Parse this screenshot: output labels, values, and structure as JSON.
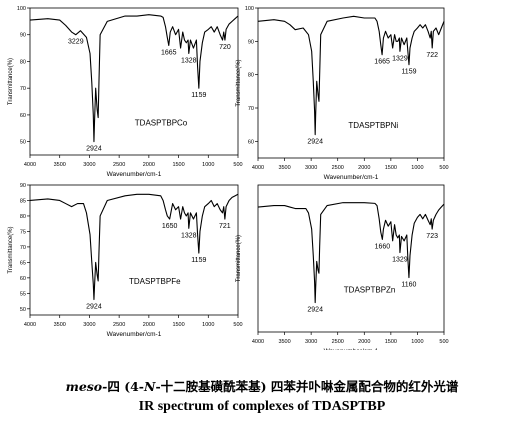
{
  "caption": {
    "cn_prefix": "meso-",
    "cn_mid": "四 (4-",
    "cn_italic_n": "N",
    "cn_rest": "-十二胺基磺酰苯基) 四苯并卟啉金属配合物的红外光谱",
    "en": "IR spectrum of complexes of TDASPTBP"
  },
  "chart_data": [
    {
      "type": "line",
      "title": "TDASPTBPCo",
      "xlabel": "Wavenumber/cm-1",
      "ylabel": "Transmittance(%)",
      "xlim": [
        4000,
        500
      ],
      "ylim": [
        45,
        100
      ],
      "xticks": [
        4000,
        3500,
        3000,
        2500,
        2000,
        1500,
        1000,
        500
      ],
      "yticks": [
        50,
        60,
        70,
        80,
        90,
        100
      ],
      "peak_labels": [
        {
          "x": 3229,
          "y": 90.0,
          "label": "3229"
        },
        {
          "x": 2924,
          "y": 50.0,
          "label": "2924"
        },
        {
          "x": 1665,
          "y": 86.0,
          "label": "1665"
        },
        {
          "x": 1328,
          "y": 83.0,
          "label": "1328"
        },
        {
          "x": 1159,
          "y": 70.0,
          "label": "1159"
        },
        {
          "x": 720,
          "y": 88.0,
          "label": "720"
        }
      ],
      "series": [
        {
          "points": [
            [
              4000,
              95.5
            ],
            [
              3700,
              96
            ],
            [
              3500,
              95.5
            ],
            [
              3400,
              93.5
            ],
            [
              3300,
              91
            ],
            [
              3229,
              90
            ],
            [
              3150,
              91.5
            ],
            [
              3050,
              89
            ],
            [
              2990,
              83
            ],
            [
              2960,
              72
            ],
            [
              2935,
              60
            ],
            [
              2924,
              50
            ],
            [
              2915,
              57
            ],
            [
              2895,
              70
            ],
            [
              2870,
              62
            ],
            [
              2853,
              59
            ],
            [
              2840,
              72
            ],
            [
              2820,
              90
            ],
            [
              2700,
              95
            ],
            [
              2400,
              97
            ],
            [
              2200,
              97
            ],
            [
              2000,
              97.5
            ],
            [
              1800,
              97
            ],
            [
              1760,
              96.5
            ],
            [
              1720,
              93
            ],
            [
              1690,
              89
            ],
            [
              1665,
              86
            ],
            [
              1640,
              91
            ],
            [
              1600,
              93
            ],
            [
              1550,
              90
            ],
            [
              1500,
              92
            ],
            [
              1466,
              85
            ],
            [
              1430,
              91
            ],
            [
              1400,
              88
            ],
            [
              1370,
              87
            ],
            [
              1340,
              88
            ],
            [
              1328,
              83
            ],
            [
              1300,
              88
            ],
            [
              1250,
              85
            ],
            [
              1200,
              88
            ],
            [
              1180,
              78
            ],
            [
              1159,
              70
            ],
            [
              1140,
              80
            ],
            [
              1100,
              87
            ],
            [
              1060,
              91
            ],
            [
              1000,
              92
            ],
            [
              950,
              93
            ],
            [
              900,
              91
            ],
            [
              850,
              93
            ],
            [
              800,
              90
            ],
            [
              760,
              88
            ],
            [
              740,
              91
            ],
            [
              720,
              88
            ],
            [
              700,
              92
            ],
            [
              650,
              94
            ],
            [
              600,
              95
            ],
            [
              550,
              96
            ],
            [
              500,
              97
            ]
          ]
        }
      ]
    },
    {
      "type": "line",
      "title": "TDASPTBPNi",
      "xlabel": "Wavenumber/cm-1",
      "ylabel": "Transmittance(%)",
      "xlim": [
        4000,
        500
      ],
      "ylim": [
        55,
        100
      ],
      "xticks": [
        4000,
        3500,
        3000,
        2500,
        2000,
        1500,
        1000,
        500
      ],
      "yticks": [
        60,
        70,
        80,
        90,
        100
      ],
      "peak_labels": [
        {
          "x": 2924,
          "y": 62.0,
          "label": "2924"
        },
        {
          "x": 1665,
          "y": 86.0,
          "label": "1665"
        },
        {
          "x": 1329,
          "y": 87.0,
          "label": "1329"
        },
        {
          "x": 1159,
          "y": 83.0,
          "label": "1159"
        },
        {
          "x": 722,
          "y": 88.0,
          "label": "722"
        }
      ],
      "series": [
        {
          "points": [
            [
              4000,
              96
            ],
            [
              3700,
              96.5
            ],
            [
              3500,
              96
            ],
            [
              3400,
              95
            ],
            [
              3300,
              93.5
            ],
            [
              3150,
              94
            ],
            [
              3050,
              92
            ],
            [
              2990,
              87
            ],
            [
              2960,
              78
            ],
            [
              2935,
              69
            ],
            [
              2924,
              62
            ],
            [
              2915,
              68
            ],
            [
              2895,
              78
            ],
            [
              2870,
              74
            ],
            [
              2853,
              72
            ],
            [
              2840,
              80
            ],
            [
              2820,
              92
            ],
            [
              2700,
              96
            ],
            [
              2400,
              97
            ],
            [
              2200,
              97.5
            ],
            [
              2000,
              97
            ],
            [
              1800,
              97
            ],
            [
              1760,
              96
            ],
            [
              1720,
              93
            ],
            [
              1690,
              89
            ],
            [
              1665,
              86
            ],
            [
              1640,
              91
            ],
            [
              1600,
              93
            ],
            [
              1550,
              91
            ],
            [
              1500,
              92
            ],
            [
              1466,
              88
            ],
            [
              1430,
              92
            ],
            [
              1400,
              90
            ],
            [
              1370,
              90
            ],
            [
              1340,
              91
            ],
            [
              1329,
              87
            ],
            [
              1300,
              91
            ],
            [
              1250,
              89
            ],
            [
              1200,
              91
            ],
            [
              1180,
              87
            ],
            [
              1159,
              83
            ],
            [
              1140,
              88
            ],
            [
              1100,
              91
            ],
            [
              1060,
              93
            ],
            [
              1000,
              94
            ],
            [
              950,
              95
            ],
            [
              900,
              94
            ],
            [
              850,
              95
            ],
            [
              800,
              93
            ],
            [
              760,
              91
            ],
            [
              740,
              93
            ],
            [
              722,
              88
            ],
            [
              700,
              93
            ],
            [
              650,
              94
            ],
            [
              600,
              92
            ],
            [
              550,
              94
            ],
            [
              500,
              96
            ]
          ]
        }
      ]
    },
    {
      "type": "line",
      "title": "TDASPTBPFe",
      "xlabel": "Wavenumber/cm-1",
      "ylabel": "Transmittance(%)",
      "xlim": [
        4000,
        500
      ],
      "ylim": [
        48,
        90
      ],
      "xticks": [
        4000,
        3500,
        3000,
        2500,
        2000,
        1500,
        1000,
        500
      ],
      "yticks": [
        50,
        55,
        60,
        65,
        70,
        75,
        80,
        85,
        90
      ],
      "peak_labels": [
        {
          "x": 2924,
          "y": 53.0,
          "label": "2924"
        },
        {
          "x": 1650,
          "y": 79.0,
          "label": "1650"
        },
        {
          "x": 1328,
          "y": 76.0,
          "label": "1328"
        },
        {
          "x": 1159,
          "y": 68.0,
          "label": "1159"
        },
        {
          "x": 721,
          "y": 79.0,
          "label": "721"
        }
      ],
      "series": [
        {
          "points": [
            [
              4000,
              85
            ],
            [
              3700,
              85.5
            ],
            [
              3500,
              85
            ],
            [
              3400,
              84
            ],
            [
              3300,
              83
            ],
            [
              3200,
              84
            ],
            [
              3100,
              84
            ],
            [
              3050,
              81
            ],
            [
              2990,
              74
            ],
            [
              2960,
              65
            ],
            [
              2935,
              58
            ],
            [
              2924,
              53
            ],
            [
              2915,
              57
            ],
            [
              2895,
              65
            ],
            [
              2870,
              61
            ],
            [
              2853,
              59
            ],
            [
              2840,
              68
            ],
            [
              2820,
              80
            ],
            [
              2700,
              85
            ],
            [
              2400,
              86.5
            ],
            [
              2200,
              87
            ],
            [
              2000,
              87
            ],
            [
              1800,
              86.5
            ],
            [
              1760,
              85
            ],
            [
              1720,
              82
            ],
            [
              1690,
              80
            ],
            [
              1650,
              79
            ],
            [
              1620,
              82
            ],
            [
              1600,
              84
            ],
            [
              1550,
              82
            ],
            [
              1500,
              83
            ],
            [
              1466,
              79
            ],
            [
              1430,
              83
            ],
            [
              1400,
              81
            ],
            [
              1370,
              80
            ],
            [
              1340,
              81
            ],
            [
              1328,
              76
            ],
            [
              1300,
              81
            ],
            [
              1250,
              79
            ],
            [
              1200,
              81
            ],
            [
              1180,
              74
            ],
            [
              1159,
              68
            ],
            [
              1140,
              75
            ],
            [
              1100,
              80
            ],
            [
              1060,
              83
            ],
            [
              1000,
              84
            ],
            [
              950,
              85
            ],
            [
              900,
              83
            ],
            [
              850,
              84
            ],
            [
              800,
              82
            ],
            [
              760,
              81
            ],
            [
              740,
              83
            ],
            [
              721,
              79
            ],
            [
              700,
              83
            ],
            [
              650,
              85
            ],
            [
              600,
              86
            ],
            [
              550,
              86.5
            ],
            [
              500,
              87
            ]
          ]
        }
      ]
    },
    {
      "type": "line",
      "title": "TDASPTBPZn",
      "xlabel": "Wavenumber/cm-1",
      "ylabel": "Transmittance(%)",
      "xlim": [
        4000,
        500
      ],
      "ylim": [
        0,
        100
      ],
      "xticks": [
        4000,
        3500,
        3000,
        2500,
        2000,
        1500,
        1000,
        500
      ],
      "yticks": [],
      "peak_labels": [
        {
          "x": 2924,
          "y": 20.0,
          "label": "2924"
        },
        {
          "x": 1660,
          "y": 63.0,
          "label": "1660"
        },
        {
          "x": 1329,
          "y": 54.0,
          "label": "1329"
        },
        {
          "x": 1160,
          "y": 37.0,
          "label": "1160"
        },
        {
          "x": 723,
          "y": 70.0,
          "label": "723"
        }
      ],
      "series": [
        {
          "points": [
            [
              4000,
              85
            ],
            [
              3700,
              86
            ],
            [
              3500,
              86
            ],
            [
              3400,
              85
            ],
            [
              3300,
              84
            ],
            [
              3200,
              84
            ],
            [
              3100,
              84
            ],
            [
              3050,
              81
            ],
            [
              2990,
              70
            ],
            [
              2960,
              52
            ],
            [
              2935,
              34
            ],
            [
              2924,
              20
            ],
            [
              2915,
              30
            ],
            [
              2895,
              48
            ],
            [
              2870,
              42
            ],
            [
              2853,
              40
            ],
            [
              2840,
              58
            ],
            [
              2820,
              80
            ],
            [
              2700,
              86
            ],
            [
              2400,
              88
            ],
            [
              2200,
              88
            ],
            [
              2000,
              88
            ],
            [
              1800,
              87.5
            ],
            [
              1760,
              86
            ],
            [
              1720,
              77
            ],
            [
              1690,
              68
            ],
            [
              1660,
              63
            ],
            [
              1640,
              70
            ],
            [
              1600,
              76
            ],
            [
              1550,
              72
            ],
            [
              1500,
              75
            ],
            [
              1466,
              62
            ],
            [
              1430,
              73
            ],
            [
              1400,
              66
            ],
            [
              1370,
              64
            ],
            [
              1340,
              66
            ],
            [
              1329,
              54
            ],
            [
              1300,
              65
            ],
            [
              1250,
              62
            ],
            [
              1200,
              66
            ],
            [
              1180,
              50
            ],
            [
              1160,
              37
            ],
            [
              1140,
              52
            ],
            [
              1100,
              66
            ],
            [
              1060,
              74
            ],
            [
              1000,
              78
            ],
            [
              950,
              80
            ],
            [
              900,
              77
            ],
            [
              850,
              80
            ],
            [
              800,
              76
            ],
            [
              760,
              73
            ],
            [
              740,
              77
            ],
            [
              723,
              70
            ],
            [
              700,
              76
            ],
            [
              650,
              80
            ],
            [
              600,
              83
            ],
            [
              550,
              85
            ],
            [
              500,
              87
            ]
          ]
        }
      ]
    }
  ]
}
